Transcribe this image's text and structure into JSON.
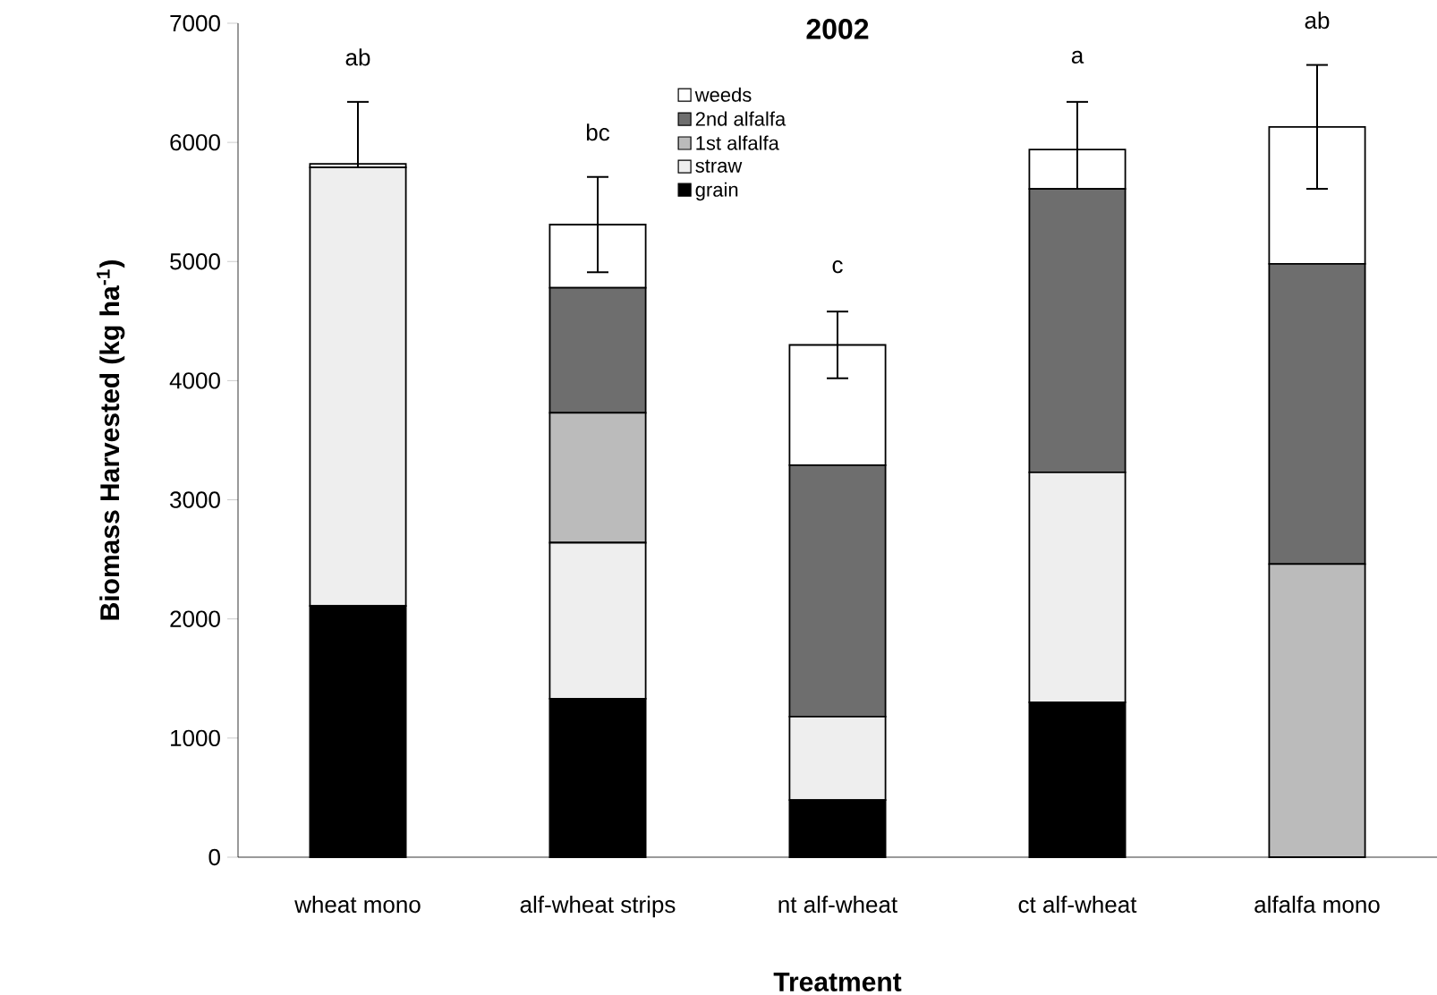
{
  "chart_data": {
    "type": "bar",
    "stacked": true,
    "title": "2002",
    "xlabel": "Treatment",
    "ylabel": "Biomass Harvested (kg ha$^{-1}$)",
    "categories": [
      "wheat mono",
      "alf-wheat strips",
      "nt alf-wheat",
      "ct alf-wheat",
      "alfalfa mono"
    ],
    "series": [
      {
        "name": "grain",
        "color": "#000000",
        "values": [
          2110,
          1330,
          480,
          1300,
          0
        ]
      },
      {
        "name": "straw",
        "color": "#eeeeee",
        "values": [
          3680,
          1310,
          700,
          1930,
          0
        ]
      },
      {
        "name": "1st alfalfa",
        "color": "#bbbbbb",
        "values": [
          0,
          1090,
          0,
          0,
          2460
        ]
      },
      {
        "name": "2nd alfalfa",
        "color": "#6e6e6e",
        "values": [
          0,
          1050,
          2110,
          2380,
          2520
        ]
      },
      {
        "name": "weeds",
        "color": "#ffffff",
        "values": [
          30,
          530,
          1010,
          330,
          1150
        ],
        "errors": [
          520,
          400,
          280,
          400,
          520
        ]
      }
    ],
    "ylim": [
      0,
      7000
    ],
    "yticks": [
      0,
      1000,
      2000,
      3000,
      4000,
      5000,
      6000,
      7000
    ],
    "grid": false,
    "legend": "top",
    "annotations": [
      "ab",
      "bc",
      "c",
      "a",
      "ab"
    ]
  }
}
